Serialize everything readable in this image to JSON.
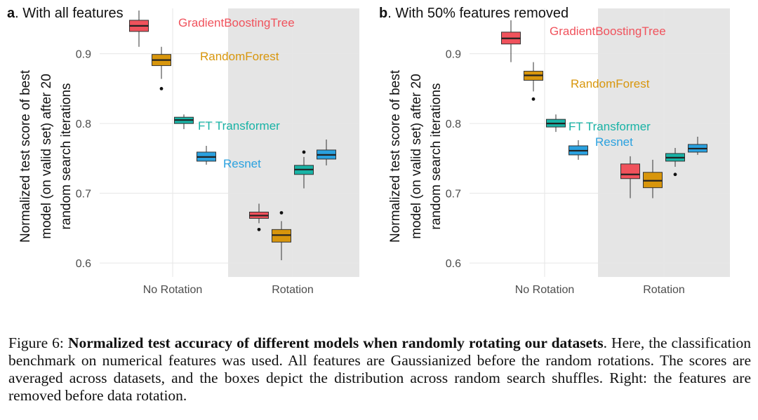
{
  "colors": {
    "gbt": "#f0525c",
    "rf": "#d8960c",
    "ft": "#19b3a6",
    "resnet": "#2aa1df",
    "rotation_bg": "#e5e5e5",
    "grid": "#e6e6e6"
  },
  "chart_data": [
    {
      "type": "boxplot",
      "panel_letter": "a",
      "title": ". With all features",
      "ylabel_lines": [
        "Normalized test score of best",
        "model (on valid set) after 20",
        "random search iterations"
      ],
      "categories": [
        "No Rotation",
        "Rotation"
      ],
      "shaded_category": "Rotation",
      "yticks": [
        0.6,
        0.7,
        0.8,
        0.9
      ],
      "ytick_labels": [
        "0.6",
        "0.7",
        "0.8",
        "0.9"
      ],
      "ylim": [
        0.58,
        0.965
      ],
      "series": [
        {
          "name": "GradientBoostingTree",
          "color_key": "gbt",
          "boxes": [
            {
              "category": "No Rotation",
              "min": 0.91,
              "q1": 0.932,
              "median": 0.94,
              "q3": 0.948,
              "max": 0.962,
              "outliers": []
            },
            {
              "category": "Rotation",
              "min": 0.657,
              "q1": 0.664,
              "median": 0.668,
              "q3": 0.673,
              "max": 0.685,
              "outliers": [
                0.648
              ]
            }
          ]
        },
        {
          "name": "RandomForest",
          "color_key": "rf",
          "boxes": [
            {
              "category": "No Rotation",
              "min": 0.864,
              "q1": 0.883,
              "median": 0.891,
              "q3": 0.899,
              "max": 0.91,
              "outliers": [
                0.85
              ]
            },
            {
              "category": "Rotation",
              "min": 0.604,
              "q1": 0.63,
              "median": 0.64,
              "q3": 0.648,
              "max": 0.66,
              "outliers": [
                0.672
              ]
            }
          ]
        },
        {
          "name": "FT Transformer",
          "color_key": "ft",
          "boxes": [
            {
              "category": "No Rotation",
              "min": 0.792,
              "q1": 0.8,
              "median": 0.805,
              "q3": 0.809,
              "max": 0.813,
              "outliers": []
            },
            {
              "category": "Rotation",
              "min": 0.707,
              "q1": 0.727,
              "median": 0.734,
              "q3": 0.74,
              "max": 0.752,
              "outliers": [
                0.759
              ]
            }
          ]
        },
        {
          "name": "Resnet",
          "color_key": "resnet",
          "boxes": [
            {
              "category": "No Rotation",
              "min": 0.741,
              "q1": 0.746,
              "median": 0.752,
              "q3": 0.759,
              "max": 0.768,
              "outliers": []
            },
            {
              "category": "Rotation",
              "min": 0.74,
              "q1": 0.749,
              "median": 0.755,
              "q3": 0.762,
              "max": 0.777,
              "outliers": []
            }
          ]
        }
      ]
    },
    {
      "type": "boxplot",
      "panel_letter": "b",
      "title": ". With 50% features removed",
      "ylabel_lines": [
        "Normalized test score of best",
        "model (on valid set) after 20",
        "random search iterations"
      ],
      "categories": [
        "No Rotation",
        "Rotation"
      ],
      "shaded_category": "Rotation",
      "yticks": [
        0.6,
        0.7,
        0.8,
        0.9
      ],
      "ytick_labels": [
        "0.6",
        "0.7",
        "0.8",
        "0.9"
      ],
      "ylim": [
        0.58,
        0.965
      ],
      "series": [
        {
          "name": "GradientBoostingTree",
          "color_key": "gbt",
          "boxes": [
            {
              "category": "No Rotation",
              "min": 0.888,
              "q1": 0.914,
              "median": 0.922,
              "q3": 0.931,
              "max": 0.948,
              "outliers": []
            },
            {
              "category": "Rotation",
              "min": 0.693,
              "q1": 0.721,
              "median": 0.727,
              "q3": 0.742,
              "max": 0.753,
              "outliers": []
            }
          ]
        },
        {
          "name": "RandomForest",
          "color_key": "rf",
          "boxes": [
            {
              "category": "No Rotation",
              "min": 0.846,
              "q1": 0.862,
              "median": 0.869,
              "q3": 0.875,
              "max": 0.888,
              "outliers": [
                0.835
              ]
            },
            {
              "category": "Rotation",
              "min": 0.693,
              "q1": 0.708,
              "median": 0.718,
              "q3": 0.73,
              "max": 0.748,
              "outliers": []
            }
          ]
        },
        {
          "name": "FT Transformer",
          "color_key": "ft",
          "boxes": [
            {
              "category": "No Rotation",
              "min": 0.788,
              "q1": 0.795,
              "median": 0.8,
              "q3": 0.806,
              "max": 0.813,
              "outliers": []
            },
            {
              "category": "Rotation",
              "min": 0.738,
              "q1": 0.746,
              "median": 0.751,
              "q3": 0.757,
              "max": 0.765,
              "outliers": [
                0.727
              ]
            }
          ]
        },
        {
          "name": "Resnet",
          "color_key": "resnet",
          "boxes": [
            {
              "category": "No Rotation",
              "min": 0.748,
              "q1": 0.755,
              "median": 0.761,
              "q3": 0.768,
              "max": 0.776,
              "outliers": []
            },
            {
              "category": "Rotation",
              "min": 0.755,
              "q1": 0.759,
              "median": 0.764,
              "q3": 0.77,
              "max": 0.781,
              "outliers": []
            }
          ]
        }
      ]
    }
  ],
  "caption": {
    "label": "Figure 6: ",
    "title": "Normalized test accuracy of different models when randomly rotating our datasets",
    "title_end": ".",
    "body": " Here, the classification benchmark on numerical features was used. All features are Gaussianized before the random rotations.  The scores are averaged across datasets, and the boxes depict the distribution across random search shuffles. Right: the features are removed before data rotation."
  }
}
